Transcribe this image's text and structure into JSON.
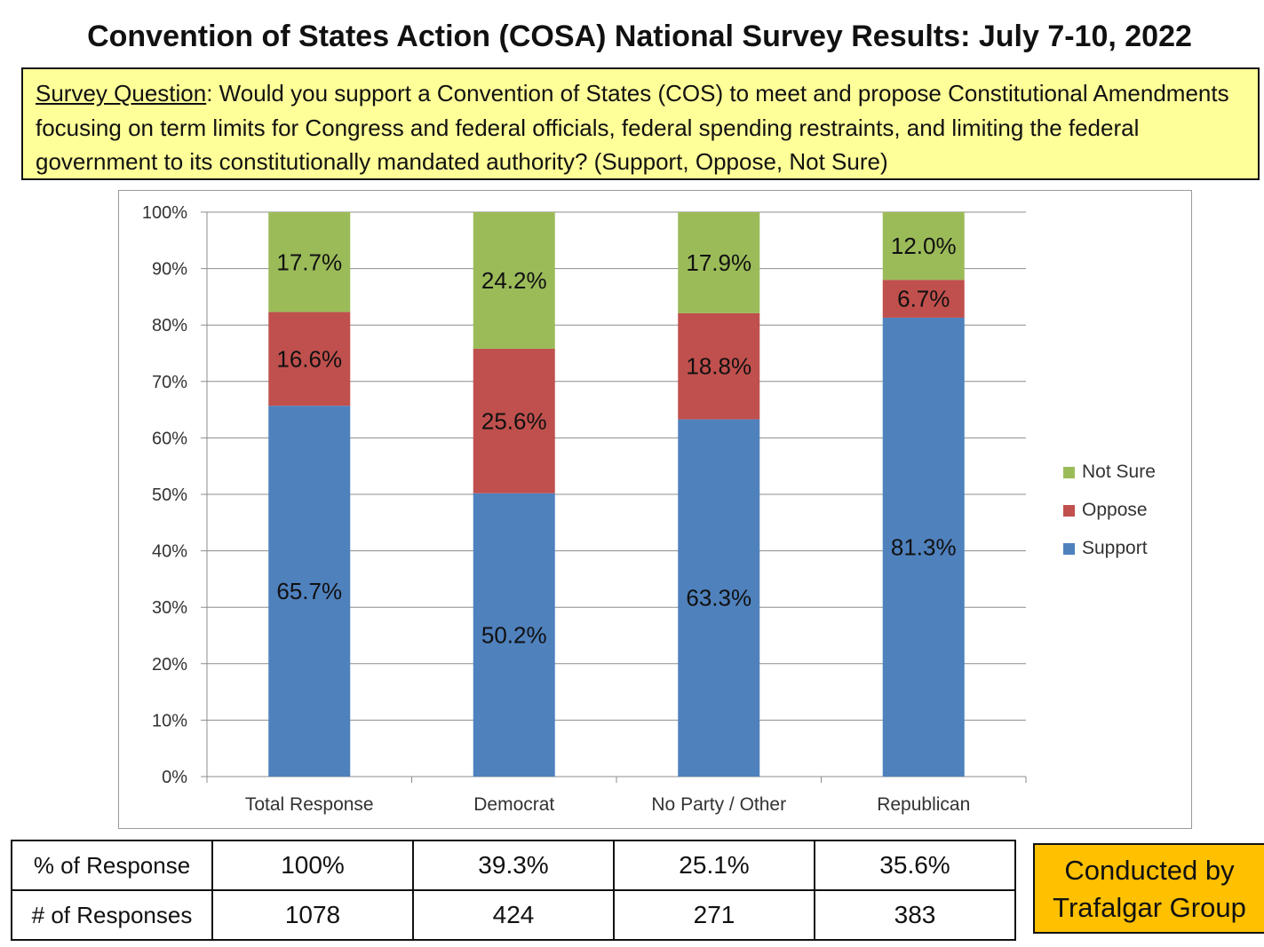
{
  "title": "Convention of States Action (COSA) National Survey Results: July 7-10, 2022",
  "question": {
    "label": "Survey Question",
    "text": ": Would you support a Convention of States (COS) to meet and propose Constitutional Amendments focusing on term limits for Congress and federal officials, federal spending restraints, and limiting the federal government to its constitutionally mandated authority? (Support, Oppose, Not Sure)"
  },
  "chart_data": {
    "type": "bar",
    "stacked": true,
    "categories": [
      "Total Response",
      "Democrat",
      "No Party / Other",
      "Republican"
    ],
    "series": [
      {
        "name": "Support",
        "color": "#4f81bd",
        "values": [
          65.7,
          50.2,
          63.3,
          81.3
        ]
      },
      {
        "name": "Oppose",
        "color": "#c0504d",
        "values": [
          16.6,
          25.6,
          18.8,
          6.7
        ]
      },
      {
        "name": "Not Sure",
        "color": "#9bbb59",
        "values": [
          17.7,
          24.2,
          17.9,
          12.0
        ]
      }
    ],
    "data_labels": [
      [
        "65.7%",
        "50.2%",
        "63.3%",
        "81.3%"
      ],
      [
        "16.6%",
        "25.6%",
        "18.8%",
        "6.7%"
      ],
      [
        "17.7%",
        "24.2%",
        "17.9%",
        "12.0%"
      ]
    ],
    "yticks": [
      "0%",
      "10%",
      "20%",
      "30%",
      "40%",
      "50%",
      "60%",
      "70%",
      "80%",
      "90%",
      "100%"
    ],
    "ylim": [
      0,
      100
    ],
    "grid": true,
    "legend": [
      "Not Sure",
      "Oppose",
      "Support"
    ],
    "legend_position": "right"
  },
  "table": {
    "rows": [
      {
        "label": "% of Response",
        "values": [
          "100%",
          "39.3%",
          "25.1%",
          "35.6%"
        ]
      },
      {
        "label": "# of Responses",
        "values": [
          "1078",
          "424",
          "271",
          "383"
        ]
      }
    ]
  },
  "credit": {
    "line1": "Conducted by",
    "line2": "Trafalgar Group"
  }
}
